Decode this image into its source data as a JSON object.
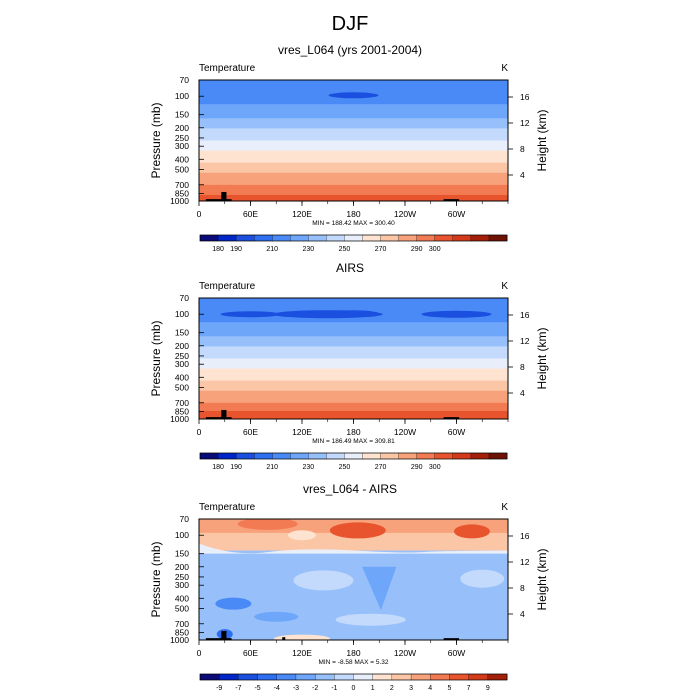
{
  "figure": {
    "title": "DJF"
  },
  "chart_data": [
    {
      "type": "heatmap",
      "title": "vres_L064 (yrs 2001-2004)",
      "left_label": "Temperature",
      "units": "K",
      "ylabel": "Pressure (mb)",
      "ylabel_right": "Height (km)",
      "yticks": [
        "70",
        "100",
        "150",
        "200",
        "250",
        "300",
        "400",
        "500",
        "700",
        "850",
        "1000"
      ],
      "yticks_right": [
        "16",
        "12",
        "8",
        "4"
      ],
      "xticks": [
        "0",
        "60E",
        "120E",
        "180",
        "120W",
        "60W"
      ],
      "stats": "MIN = 188.42  MAX = 300.40",
      "levels": [
        180,
        190,
        200,
        210,
        220,
        230,
        240,
        250,
        260,
        270,
        280,
        290,
        300
      ],
      "colorbar_labels": [
        "180",
        "190",
        "210",
        "230",
        "250",
        "270",
        "290",
        "300"
      ],
      "min": 188.42,
      "max": 300.4
    },
    {
      "type": "heatmap",
      "title": "AIRS",
      "left_label": "Temperature",
      "units": "K",
      "ylabel": "Pressure (mb)",
      "ylabel_right": "Height (km)",
      "yticks": [
        "70",
        "100",
        "150",
        "200",
        "250",
        "300",
        "400",
        "500",
        "700",
        "850",
        "1000"
      ],
      "yticks_right": [
        "16",
        "12",
        "8",
        "4"
      ],
      "xticks": [
        "0",
        "60E",
        "120E",
        "180",
        "120W",
        "60W"
      ],
      "stats": "MIN = 186.49  MAX = 309.81",
      "levels": [
        180,
        190,
        200,
        210,
        220,
        230,
        240,
        250,
        260,
        270,
        280,
        290,
        300
      ],
      "colorbar_labels": [
        "180",
        "190",
        "210",
        "230",
        "250",
        "270",
        "290",
        "300"
      ],
      "min": 186.49,
      "max": 309.81
    },
    {
      "type": "heatmap",
      "title": "vres_L064 - AIRS",
      "left_label": "Temperature",
      "units": "K",
      "ylabel": "Pressure (mb)",
      "ylabel_right": "Height (km)",
      "yticks": [
        "70",
        "100",
        "150",
        "200",
        "250",
        "300",
        "400",
        "500",
        "700",
        "850",
        "1000"
      ],
      "yticks_right": [
        "16",
        "12",
        "8",
        "4"
      ],
      "xticks": [
        "0",
        "60E",
        "120E",
        "180",
        "120W",
        "60W"
      ],
      "stats": "MIN =  -8.58  MAX =   5.32",
      "levels": [
        -9,
        -7,
        -5,
        -4,
        -3,
        -2,
        -1,
        0,
        1,
        2,
        3,
        4,
        5,
        7,
        9
      ],
      "colorbar_labels": [
        "-9",
        "-7",
        "-5",
        "-4",
        "-3",
        "-2",
        "-1",
        "0",
        "1",
        "2",
        "3",
        "4",
        "5",
        "7",
        "9"
      ],
      "min": -8.58,
      "max": 5.32
    }
  ],
  "colors": {
    "temp_scale": [
      "#0a0a78",
      "#0026c9",
      "#1a4fe0",
      "#2e6ef0",
      "#4a8af6",
      "#6ea6fa",
      "#97c0fb",
      "#c3dafc",
      "#e9eefb",
      "#fde3d0",
      "#fbc6a6",
      "#f8a27c",
      "#f27b53",
      "#e8542e",
      "#d23a1a",
      "#a31f0a",
      "#6e1206"
    ],
    "diff_scale": [
      "#0a0a78",
      "#0026c9",
      "#1a4fe0",
      "#2e6ef0",
      "#4a8af6",
      "#6ea6fa",
      "#97c0fb",
      "#c3dafc",
      "#e9eefb",
      "#fde3d0",
      "#fbc6a6",
      "#f8a27c",
      "#f27b53",
      "#e8542e",
      "#d23a1a",
      "#a31f0a",
      "#6e1206"
    ]
  }
}
